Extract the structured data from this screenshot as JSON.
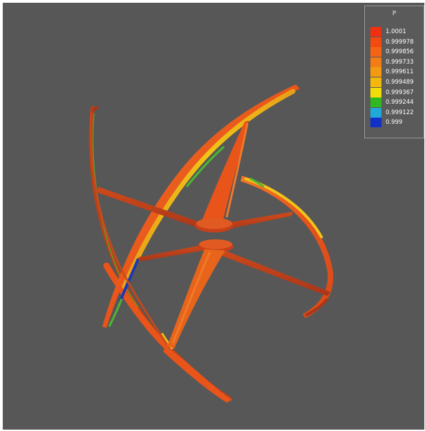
{
  "legend": {
    "title": "P",
    "entries": [
      {
        "label": "1.0001",
        "color": "#f03010"
      },
      {
        "label": "0.999978",
        "color": "#f24a10"
      },
      {
        "label": "0.999856",
        "color": "#f46414"
      },
      {
        "label": "0.999733",
        "color": "#f47c14"
      },
      {
        "label": "0.999611",
        "color": "#f49a10"
      },
      {
        "label": "0.999489",
        "color": "#f4b80c"
      },
      {
        "label": "0.999367",
        "color": "#f0dc08"
      },
      {
        "label": "0.999244",
        "color": "#30b820"
      },
      {
        "label": "0.999122",
        "color": "#20a8d8"
      },
      {
        "label": "0.999",
        "color": "#1030c8"
      }
    ]
  },
  "colors": {
    "background": "#575757",
    "surface_main": "#e8541a",
    "surface_dark": "#c8401a",
    "surface_light": "#f07a28",
    "highlight_yellow": "#f0c418",
    "highlight_green": "#4cb830",
    "highlight_blue": "#1838b8"
  }
}
